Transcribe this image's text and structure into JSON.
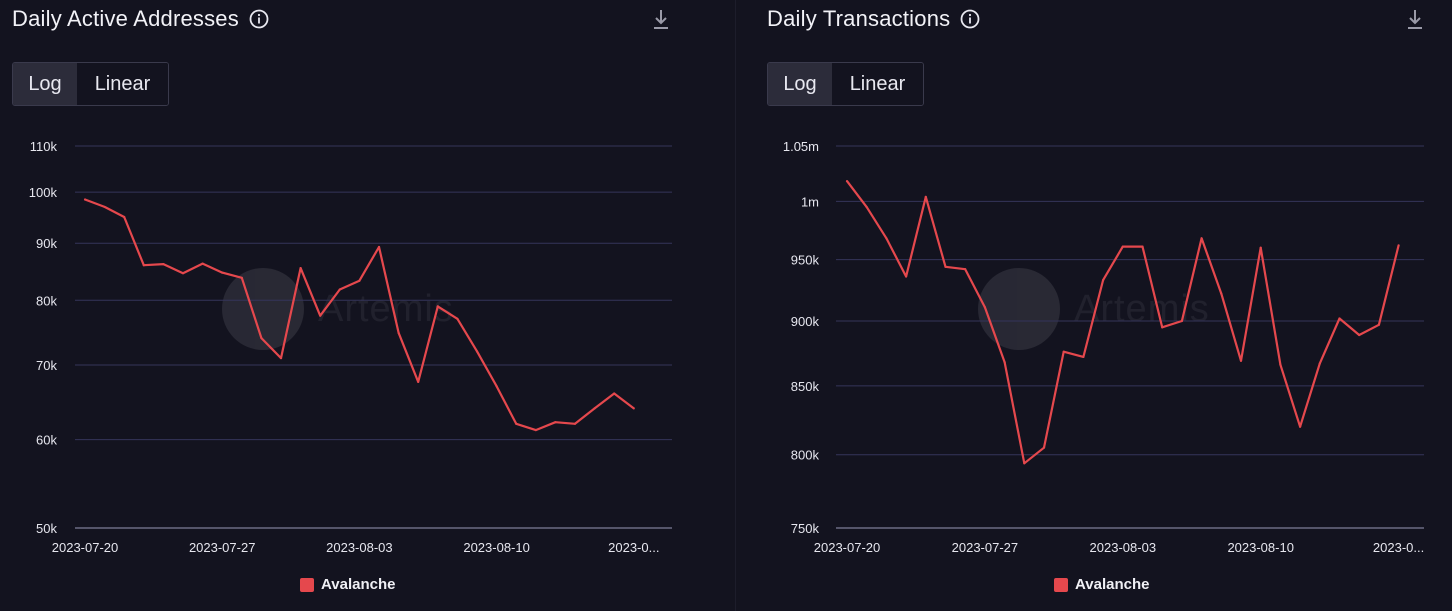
{
  "panels": [
    {
      "title": "Daily Active Addresses",
      "toggle": {
        "log_label": "Log",
        "linear_label": "Linear",
        "selected": "Log"
      },
      "legend_label": "Avalanche",
      "watermark": "Artemis"
    },
    {
      "title": "Daily Transactions",
      "toggle": {
        "log_label": "Log",
        "linear_label": "Linear",
        "selected": "Log"
      },
      "legend_label": "Avalanche",
      "watermark": "Artemis"
    }
  ],
  "colors": {
    "series": "#e5484d",
    "grid": "#34345a",
    "background": "#13131f"
  },
  "icons": [
    "info-icon",
    "download-icon"
  ],
  "chart_data": [
    {
      "type": "line",
      "title": "Daily Active Addresses",
      "scale": "log",
      "x": [
        "2023-07-20",
        "2023-07-21",
        "2023-07-22",
        "2023-07-23",
        "2023-07-24",
        "2023-07-25",
        "2023-07-26",
        "2023-07-27",
        "2023-07-28",
        "2023-07-29",
        "2023-07-30",
        "2023-07-31",
        "2023-08-01",
        "2023-08-02",
        "2023-08-03",
        "2023-08-04",
        "2023-08-05",
        "2023-08-06",
        "2023-08-07",
        "2023-08-08",
        "2023-08-09",
        "2023-08-10",
        "2023-08-11",
        "2023-08-12",
        "2023-08-13",
        "2023-08-14",
        "2023-08-15",
        "2023-08-16",
        "2023-08-17"
      ],
      "series": [
        {
          "name": "Avalanche",
          "values": [
            98500,
            97000,
            95000,
            86000,
            86200,
            84600,
            86300,
            84700,
            83800,
            74000,
            71000,
            85500,
            77500,
            81800,
            83300,
            89300,
            74800,
            67600,
            79000,
            77000,
            72000,
            67000,
            62000,
            61200,
            62200,
            62000,
            64000,
            66000,
            64000
          ]
        }
      ],
      "x_ticks": [
        "2023-07-20",
        "2023-07-27",
        "2023-08-03",
        "2023-08-10",
        "2023-0..."
      ],
      "y_ticks": [
        "50k",
        "60k",
        "70k",
        "80k",
        "90k",
        "100k",
        "110k"
      ],
      "y_tick_values": [
        50000,
        60000,
        70000,
        80000,
        90000,
        100000,
        110000
      ],
      "ylim": [
        50000,
        110000
      ],
      "grid": true,
      "legend": "bottom-center"
    },
    {
      "type": "line",
      "title": "Daily Transactions",
      "scale": "log",
      "x": [
        "2023-07-20",
        "2023-07-21",
        "2023-07-22",
        "2023-07-23",
        "2023-07-24",
        "2023-07-25",
        "2023-07-26",
        "2023-07-27",
        "2023-07-28",
        "2023-07-29",
        "2023-07-30",
        "2023-07-31",
        "2023-08-01",
        "2023-08-02",
        "2023-08-03",
        "2023-08-04",
        "2023-08-05",
        "2023-08-06",
        "2023-08-07",
        "2023-08-08",
        "2023-08-09",
        "2023-08-10",
        "2023-08-11",
        "2023-08-12",
        "2023-08-13",
        "2023-08-14",
        "2023-08-15",
        "2023-08-16",
        "2023-08-17"
      ],
      "series": [
        {
          "name": "Avalanche",
          "values": [
            1018000,
            995000,
            968000,
            936000,
            1004000,
            944000,
            942000,
            911000,
            868000,
            794000,
            805000,
            876000,
            872000,
            933000,
            961000,
            961000,
            895000,
            900000,
            968000,
            922000,
            869000,
            960000,
            866000,
            820000,
            867000,
            902000,
            889000,
            897000,
            962000
          ]
        }
      ],
      "x_ticks": [
        "2023-07-20",
        "2023-07-27",
        "2023-08-03",
        "2023-08-10",
        "2023-0..."
      ],
      "y_ticks": [
        "750k",
        "800k",
        "850k",
        "900k",
        "950k",
        "1m",
        "1.05m"
      ],
      "y_tick_values": [
        750000,
        800000,
        850000,
        900000,
        950000,
        1000000,
        1050000
      ],
      "ylim": [
        750000,
        1050000
      ],
      "grid": true,
      "legend": "bottom-center"
    }
  ]
}
